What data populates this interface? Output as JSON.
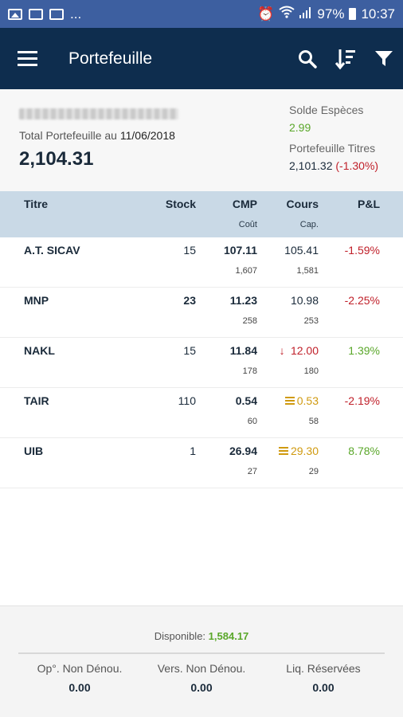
{
  "status_bar": {
    "more": "...",
    "battery": "97%",
    "time": "10:37"
  },
  "app_bar": {
    "title": "Portefeuille"
  },
  "summary": {
    "total_label": "Total Portefeuille au",
    "total_date": "11/06/2018",
    "total_value": "2,104.31",
    "cash_label": "Solde Espèces",
    "cash_value": "2.99",
    "securities_label": "Portefeuille Titres",
    "securities_value": "2,101.32",
    "securities_change": "(-1.30%)"
  },
  "table": {
    "headers": {
      "titre": "Titre",
      "stock": "Stock",
      "cmp": "CMP",
      "cmp_sub": "Coût",
      "cours": "Cours",
      "cours_sub": "Cap.",
      "pl": "P&L"
    },
    "rows": [
      {
        "titre": "A.T. SICAV",
        "stock": "15",
        "cmp": "107.11",
        "cout": "1,607",
        "cours": "105.41",
        "cap": "1,581",
        "pl": "-1.59%",
        "trend": "none",
        "pl_color": "#c0202a"
      },
      {
        "titre": "MNP",
        "stock": "23",
        "cmp": "11.23",
        "cout": "258",
        "cours": "10.98",
        "cap": "253",
        "pl": "-2.25%",
        "trend": "none",
        "pl_color": "#c0202a"
      },
      {
        "titre": "NAKL",
        "stock": "15",
        "cmp": "11.84",
        "cout": "178",
        "cours": "12.00",
        "cap": "180",
        "pl": "1.39%",
        "trend": "down",
        "pl_color": "#5aa72a"
      },
      {
        "titre": "TAIR",
        "stock": "110",
        "cmp": "0.54",
        "cout": "60",
        "cours": "0.53",
        "cap": "58",
        "pl": "-2.19%",
        "trend": "flat",
        "pl_color": "#c0202a"
      },
      {
        "titre": "UIB",
        "stock": "1",
        "cmp": "26.94",
        "cout": "27",
        "cours": "29.30",
        "cap": "29",
        "pl": "8.78%",
        "trend": "flat",
        "pl_color": "#5aa72a"
      }
    ]
  },
  "footer": {
    "available_label": "Disponible:",
    "available_value": "1,584.17",
    "col1_label": "Op°. Non Dénou.",
    "col1_value": "0.00",
    "col2_label": "Vers. Non Dénou.",
    "col2_value": "0.00",
    "col3_label": "Liq. Réservées",
    "col3_value": "0.00"
  },
  "colors": {
    "app_bar": "#0e2d4e",
    "status_bar": "#3d5fa0",
    "table_header": "#c9d9e6",
    "negative": "#c0202a",
    "positive": "#5aa72a",
    "neutral": "#d09a10"
  },
  "icons": [
    "image-icon",
    "mail-icon",
    "mail-icon",
    "alarm-icon",
    "wifi-icon",
    "signal-icon",
    "battery-icon",
    "menu-icon",
    "search-icon",
    "sort-icon",
    "filter-icon",
    "arrow-down-icon",
    "equals-icon"
  ]
}
